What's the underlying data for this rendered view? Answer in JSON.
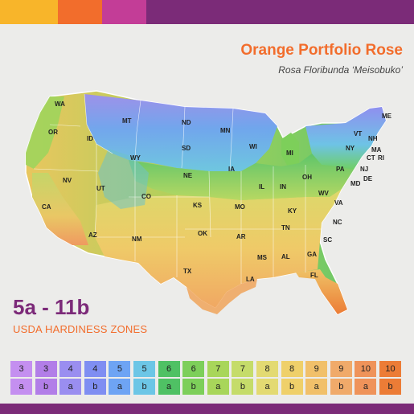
{
  "header": {
    "title": "Orange Portfolio Rose",
    "subtitle": "Rosa Floribunda ‘Meisobuko’",
    "bar_colors": [
      "#f8b52a",
      "#f26d2c",
      "#c33d97",
      "#7b2b78"
    ]
  },
  "zones": {
    "range": "5a - 11b",
    "label": "USDA HARDINESS ZONES"
  },
  "map": {
    "states": [
      "WA",
      "OR",
      "ID",
      "MT",
      "ND",
      "MN",
      "WI",
      "MI",
      "ME",
      "VT",
      "NH",
      "NY",
      "MA",
      "CT",
      "RI",
      "NJ",
      "PA",
      "DE",
      "MD",
      "OH",
      "IN",
      "IL",
      "IA",
      "SD",
      "WY",
      "NE",
      "CO",
      "UT",
      "NV",
      "CA",
      "AZ",
      "NM",
      "KS",
      "MO",
      "KY",
      "WV",
      "VA",
      "TN",
      "NC",
      "SC",
      "GA",
      "AL",
      "MS",
      "AR",
      "OK",
      "TX",
      "LA",
      "FL"
    ]
  },
  "legend": [
    {
      "num": "3",
      "let": "a",
      "color": "#c48ff0"
    },
    {
      "num": "3",
      "let": "b",
      "color": "#b27ee8"
    },
    {
      "num": "4",
      "let": "a",
      "color": "#9a8ef0"
    },
    {
      "num": "4",
      "let": "b",
      "color": "#7f8ef2"
    },
    {
      "num": "5",
      "let": "a",
      "color": "#6ea4f4"
    },
    {
      "num": "5",
      "let": "b",
      "color": "#6cc6e6"
    },
    {
      "num": "6",
      "let": "a",
      "color": "#4fc164"
    },
    {
      "num": "6",
      "let": "b",
      "color": "#7dcf5a"
    },
    {
      "num": "7",
      "let": "a",
      "color": "#a8d65a"
    },
    {
      "num": "7",
      "let": "b",
      "color": "#c5dc6a"
    },
    {
      "num": "8",
      "let": "a",
      "color": "#e3da72"
    },
    {
      "num": "8",
      "let": "b",
      "color": "#efd06a"
    },
    {
      "num": "9",
      "let": "a",
      "color": "#f1c06a"
    },
    {
      "num": "9",
      "let": "b",
      "color": "#f0aa6a"
    },
    {
      "num": "10",
      "let": "a",
      "color": "#ef935a"
    },
    {
      "num": "10",
      "let": "b",
      "color": "#ec7c36"
    }
  ]
}
